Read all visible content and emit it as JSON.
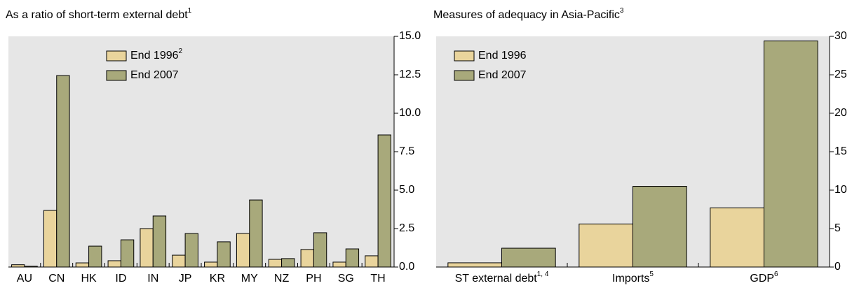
{
  "chart_data": [
    {
      "type": "bar",
      "title": "As a ratio of short-term external debt",
      "title_note": "1",
      "categories": [
        "AU",
        "CN",
        "HK",
        "ID",
        "IN",
        "JP",
        "KR",
        "MY",
        "NZ",
        "PH",
        "SG",
        "TH"
      ],
      "series": [
        {
          "name": "End 1996",
          "name_note": "2",
          "color": "#e9d49c",
          "values": [
            0.15,
            3.68,
            0.27,
            0.41,
            2.5,
            0.77,
            0.32,
            2.18,
            0.5,
            1.14,
            0.32,
            0.73
          ]
        },
        {
          "name": "End 2007",
          "name_note": null,
          "color": "#a8a97b",
          "values": [
            0.05,
            12.45,
            1.36,
            1.77,
            3.32,
            2.18,
            1.64,
            4.36,
            0.55,
            2.23,
            1.18,
            8.59
          ]
        }
      ],
      "ylim": [
        0,
        15
      ],
      "yticks": [
        {
          "value": 0,
          "label": "0.0"
        },
        {
          "value": 2.5,
          "label": "2.5"
        },
        {
          "value": 5,
          "label": "5.0"
        },
        {
          "value": 7.5,
          "label": "7.5"
        },
        {
          "value": 10,
          "label": "10.0"
        },
        {
          "value": 12.5,
          "label": "12.5"
        },
        {
          "value": 15,
          "label": "15.0"
        }
      ]
    },
    {
      "type": "bar",
      "title": "Measures of adequacy in Asia-Pacific",
      "title_note": "3",
      "categories": [
        "ST external debt",
        "Imports",
        "GDP"
      ],
      "category_notes": [
        "1, 4",
        "5",
        "6"
      ],
      "series": [
        {
          "name": "End 1996",
          "name_note": null,
          "color": "#e9d49c",
          "values": [
            0.55,
            5.6,
            7.7
          ]
        },
        {
          "name": "End 2007",
          "name_note": null,
          "color": "#a8a97b",
          "values": [
            2.45,
            10.5,
            29.4
          ]
        }
      ],
      "ylim": [
        0,
        30
      ],
      "yticks": [
        0,
        5,
        10,
        15,
        20,
        25,
        30
      ]
    }
  ]
}
